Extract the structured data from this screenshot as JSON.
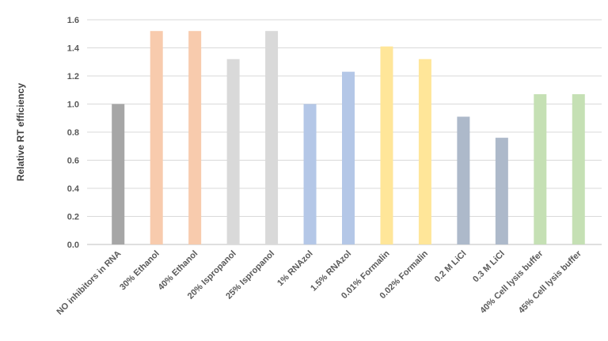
{
  "chart_data": {
    "type": "bar",
    "title": "",
    "xlabel": "",
    "ylabel": "Relative  RT efficiency",
    "ylim": [
      0,
      1.6
    ],
    "yticks": [
      "0.0",
      "0.2",
      "0.4",
      "0.6",
      "0.8",
      "1.0",
      "1.2",
      "1.4",
      "1.6"
    ],
    "grid": true,
    "legend": "none",
    "categories": [
      "NO inhibitors in RNA",
      "30% Ethanol",
      "40% Ethanol",
      "20% Ispropanol",
      "25% Ispropanol",
      "1% RNAzol",
      "1.5% RNAzol",
      "0.01% Formalin",
      "0.02% Formalin",
      "0.2 M LiCl",
      "0.3 M LiCl",
      "40% Cell lysis buffer",
      "45% Cell lysis buffer"
    ],
    "values": [
      1.0,
      1.52,
      1.52,
      1.32,
      1.52,
      1.0,
      1.23,
      1.41,
      1.32,
      0.91,
      0.76,
      1.07,
      1.07
    ],
    "colors": [
      "#a6a6a6",
      "#f8cbad",
      "#f8cbad",
      "#d9d9d9",
      "#d9d9d9",
      "#b4c7e7",
      "#b4c7e7",
      "#ffe699",
      "#ffe699",
      "#adb9ca",
      "#adb9ca",
      "#c5e0b4",
      "#c5e0b4"
    ]
  }
}
